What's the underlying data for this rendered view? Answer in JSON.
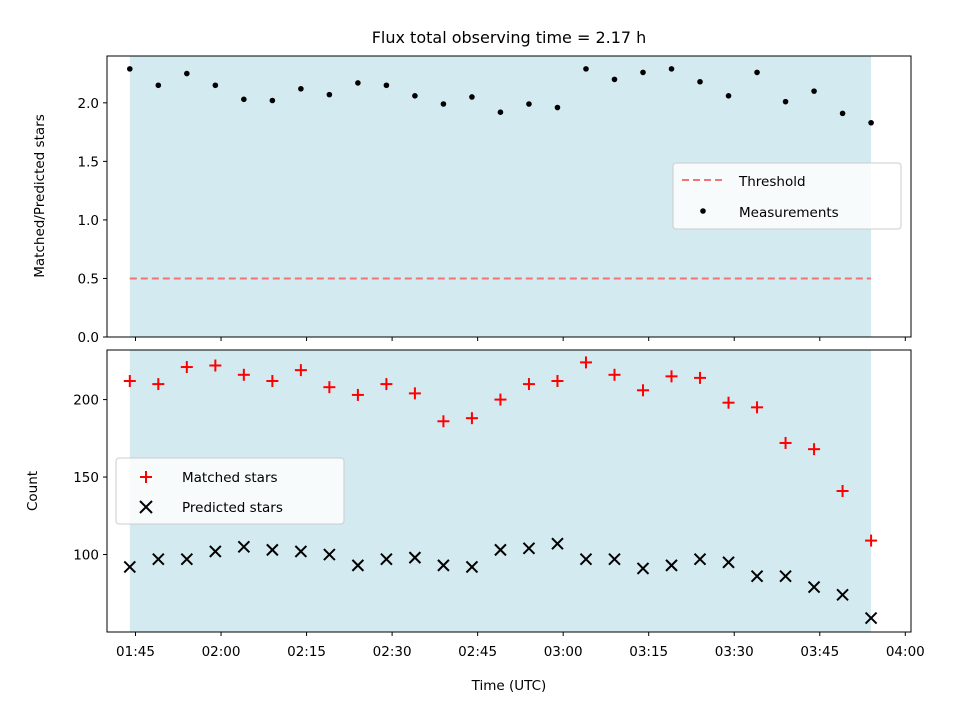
{
  "chart_data": [
    {
      "type": "scatter",
      "title": "Flux total observing time = 2.17 h",
      "ylabel": "Matched/Predicted stars",
      "ylim": [
        0,
        2.4
      ],
      "yticks": [
        "0.0",
        "0.5",
        "1.0",
        "1.5",
        "2.0"
      ],
      "ytick_values": [
        0,
        0.5,
        1.0,
        1.5,
        2.0
      ],
      "shaded_region": {
        "color": "#d4eaf1",
        "x_start": "01:44",
        "x_end": "03:54"
      },
      "legend": {
        "position": "center-right",
        "entries": [
          "Threshold",
          "Measurements"
        ]
      },
      "series": [
        {
          "name": "Threshold",
          "style": "dashed-line",
          "color": "#f27474",
          "x": [
            "01:44",
            "03:54"
          ],
          "values": [
            0.5,
            0.5
          ]
        },
        {
          "name": "Measurements",
          "style": "dot",
          "color": "#000000",
          "x": [
            "01:44",
            "01:49",
            "01:54",
            "01:59",
            "02:04",
            "02:09",
            "02:14",
            "02:19",
            "02:24",
            "02:29",
            "02:34",
            "02:39",
            "02:44",
            "02:49",
            "02:54",
            "02:59",
            "03:04",
            "03:09",
            "03:14",
            "03:19",
            "03:24",
            "03:29",
            "03:34",
            "03:39",
            "03:44",
            "03:49",
            "03:54"
          ],
          "values": [
            2.29,
            2.15,
            2.25,
            2.15,
            2.03,
            2.02,
            2.12,
            2.07,
            2.17,
            2.15,
            2.06,
            1.99,
            2.05,
            1.92,
            1.99,
            1.96,
            2.29,
            2.2,
            2.26,
            2.29,
            2.18,
            2.06,
            2.26,
            2.01,
            2.1,
            1.91,
            1.83
          ]
        }
      ]
    },
    {
      "type": "scatter",
      "xlabel": "Time (UTC)",
      "ylabel": "Count",
      "ylim": [
        50,
        232
      ],
      "yticks": [
        "100",
        "150",
        "200"
      ],
      "ytick_values": [
        100,
        150,
        200
      ],
      "xlim": [
        "01:40",
        "04:01"
      ],
      "xticks": [
        "01:45",
        "02:00",
        "02:15",
        "02:30",
        "02:45",
        "03:00",
        "03:15",
        "03:30",
        "03:45",
        "04:00"
      ],
      "shaded_region": {
        "color": "#d4eaf1",
        "x_start": "01:44",
        "x_end": "03:54"
      },
      "legend": {
        "position": "center-left",
        "entries": [
          "Matched stars",
          "Predicted stars"
        ]
      },
      "series": [
        {
          "name": "Matched stars",
          "marker": "+",
          "color": "#ff0000",
          "x": [
            "01:44",
            "01:49",
            "01:54",
            "01:59",
            "02:04",
            "02:09",
            "02:14",
            "02:19",
            "02:24",
            "02:29",
            "02:34",
            "02:39",
            "02:44",
            "02:49",
            "02:54",
            "02:59",
            "03:04",
            "03:09",
            "03:14",
            "03:19",
            "03:24",
            "03:29",
            "03:34",
            "03:39",
            "03:44",
            "03:49",
            "03:54"
          ],
          "values": [
            212,
            210,
            221,
            222,
            216,
            212,
            219,
            208,
            203,
            210,
            204,
            186,
            188,
            200,
            210,
            212,
            224,
            216,
            206,
            215,
            214,
            198,
            195,
            172,
            168,
            141,
            109
          ]
        },
        {
          "name": "Predicted stars",
          "marker": "x",
          "color": "#000000",
          "x": [
            "01:44",
            "01:49",
            "01:54",
            "01:59",
            "02:04",
            "02:09",
            "02:14",
            "02:19",
            "02:24",
            "02:29",
            "02:34",
            "02:39",
            "02:44",
            "02:49",
            "02:54",
            "02:59",
            "03:04",
            "03:09",
            "03:14",
            "03:19",
            "03:24",
            "03:29",
            "03:34",
            "03:39",
            "03:44",
            "03:49",
            "03:54"
          ],
          "values": [
            92,
            97,
            97,
            102,
            105,
            103,
            102,
            100,
            93,
            97,
            98,
            93,
            92,
            103,
            104,
            107,
            97,
            97,
            91,
            93,
            97,
            95,
            86,
            86,
            79,
            74,
            59
          ]
        }
      ]
    }
  ]
}
